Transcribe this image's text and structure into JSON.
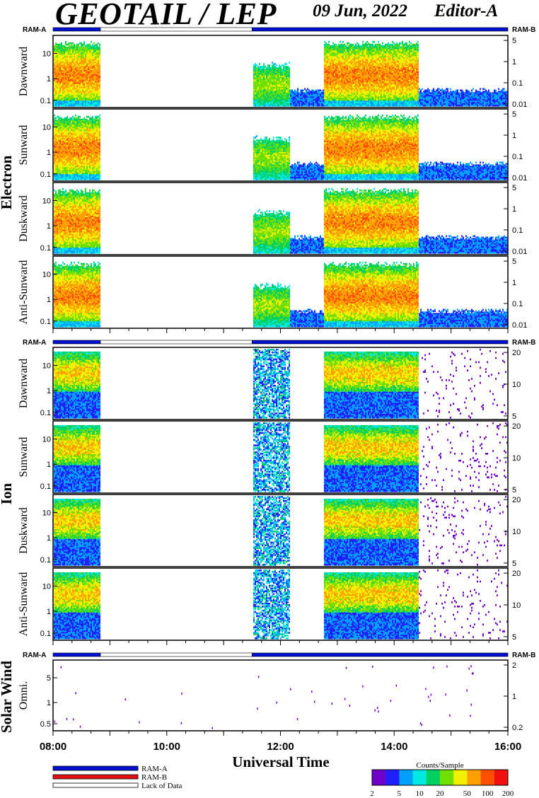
{
  "header": {
    "title": "GEOTAIL / LEP",
    "date": "09 Jun, 2022",
    "editor": "Editor-A"
  },
  "colors": {
    "ram_a": "#0010d0",
    "ram_b": "#e01010",
    "lack": "#ffffff",
    "counts_scale": [
      "#7000c8",
      "#2020ff",
      "#00a0ff",
      "#00e8e0",
      "#00d060",
      "#70e000",
      "#f0f000",
      "#ffa000",
      "#ff5000",
      "#f01010"
    ]
  },
  "chart_data": {
    "type": "heatmap",
    "x_axis": {
      "label": "Universal Time",
      "range": [
        "08:00",
        "16:00"
      ],
      "tick_labels": [
        "08:00",
        "10:00",
        "12:00",
        "14:00",
        "16:00"
      ]
    },
    "ram_labels": {
      "left": "RAM-A",
      "right": "RAM-B"
    },
    "ram_coverage": [
      {
        "mode": "RAM-A",
        "start": "08:00",
        "end": "08:50"
      },
      {
        "mode": "Lack of Data",
        "start": "08:50",
        "end": "11:30"
      },
      {
        "mode": "RAM-A",
        "start": "11:30",
        "end": "16:00"
      }
    ],
    "groups": [
      {
        "name": "Electron",
        "panels": [
          {
            "label": "Dawnward",
            "y_ticks": [
              "10",
              "1",
              "0.1"
            ],
            "right_ticks": [
              "5",
              "1",
              "0.1",
              "0.01"
            ]
          },
          {
            "label": "Sunward",
            "y_ticks": [
              "10",
              "1",
              "0.1"
            ],
            "right_ticks": [
              "5",
              "1",
              "0.1",
              "0.01"
            ]
          },
          {
            "label": "Duskward",
            "y_ticks": [
              "10",
              "1",
              "0.1"
            ],
            "right_ticks": [
              "5",
              "1",
              "0.1",
              "0.01"
            ]
          },
          {
            "label": "Anti-Sunward",
            "y_ticks": [
              "10",
              "1",
              "0.1"
            ],
            "right_ticks": [
              "5",
              "1",
              "0.1",
              "0.01"
            ]
          }
        ]
      },
      {
        "name": "Ion",
        "panels": [
          {
            "label": "Dawnward",
            "y_ticks": [
              "10",
              "1",
              "0.1"
            ],
            "right_ticks": [
              "20",
              "10",
              "5"
            ]
          },
          {
            "label": "Sunward",
            "y_ticks": [
              "10",
              "1",
              "0.1"
            ],
            "right_ticks": [
              "20",
              "10",
              "5"
            ]
          },
          {
            "label": "Duskward",
            "y_ticks": [
              "10",
              "1",
              "0.1"
            ],
            "right_ticks": [
              "20",
              "10",
              "5"
            ]
          },
          {
            "label": "Anti-Sunward",
            "y_ticks": [
              "10",
              "1",
              "0.1"
            ],
            "right_ticks": [
              "20",
              "10",
              "5"
            ]
          }
        ]
      },
      {
        "name": "Solar Wind",
        "panels": [
          {
            "label": "Omni.",
            "y_ticks": [
              "5",
              "1",
              "0.5"
            ],
            "right_ticks": [
              "2",
              "1",
              "0.2"
            ]
          }
        ]
      }
    ],
    "electron_activity": [
      {
        "start": "08:00",
        "end": "08:50",
        "level": "high"
      },
      {
        "start": "11:30",
        "end": "12:10",
        "level": "medium"
      },
      {
        "start": "12:10",
        "end": "12:45",
        "level": "low"
      },
      {
        "start": "12:45",
        "end": "14:25",
        "level": "high"
      },
      {
        "start": "14:25",
        "end": "16:00",
        "level": "low"
      }
    ],
    "ion_activity": [
      {
        "start": "08:00",
        "end": "08:50",
        "level": "high"
      },
      {
        "start": "11:30",
        "end": "12:10",
        "level": "medium"
      },
      {
        "start": "12:45",
        "end": "14:25",
        "level": "high"
      },
      {
        "start": "14:25",
        "end": "16:00",
        "level": "sparse"
      }
    ],
    "colorbar": {
      "title": "Counts/Sample",
      "tick_labels": [
        "2",
        "5",
        "10",
        "20",
        "50",
        "100",
        "200"
      ],
      "range": [
        2,
        200
      ],
      "scale": "log"
    },
    "legend": [
      {
        "label": "RAM-A",
        "color": "#0010d0"
      },
      {
        "label": "RAM-B",
        "color": "#e01010"
      },
      {
        "label": "Lack of Data",
        "color": "#ffffff"
      }
    ]
  }
}
